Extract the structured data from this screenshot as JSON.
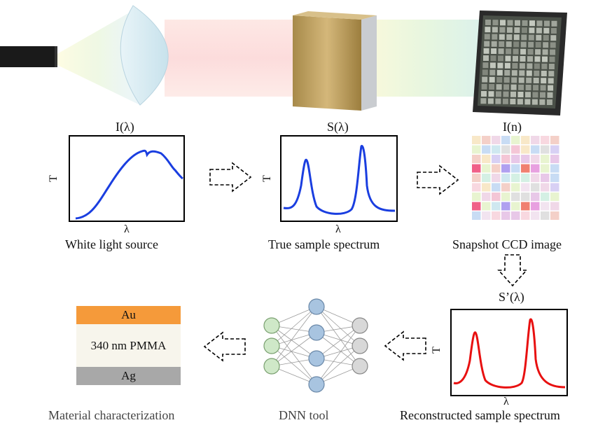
{
  "top_row": {
    "source_label": "I(λ)",
    "true_label": "S(λ)",
    "ccd_label": "I(n)",
    "source_caption": "White light source",
    "true_caption": "True sample spectrum",
    "ccd_caption": "Snapshot CCD image"
  },
  "plots": {
    "source": {
      "y_axis": "T",
      "x_axis": "λ"
    },
    "true": {
      "y_axis": "T",
      "x_axis": "λ"
    },
    "reconstructed": {
      "title": "S’(λ)",
      "y_axis": "T",
      "x_axis": "λ",
      "caption": "Reconstructed sample spectrum"
    }
  },
  "bottom_row": {
    "dnn_caption": "DNN tool",
    "material_caption": "Material characterization"
  },
  "layers": {
    "top": "Au",
    "middle": "340 nm PMMA",
    "bottom": "Ag",
    "colors": {
      "au": "#f59a3a",
      "pmma": "#f7f5ec",
      "ag": "#a8a8a8"
    }
  },
  "colors": {
    "blue_curve": "#1a3ee0",
    "red_curve": "#e81010"
  }
}
